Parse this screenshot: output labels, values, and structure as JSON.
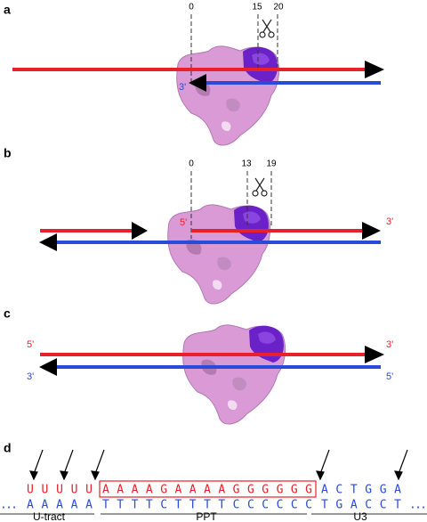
{
  "panels": [
    {
      "label": "a",
      "ticks": [
        "0",
        "15",
        "20"
      ],
      "strand_labels": [
        "3'"
      ]
    },
    {
      "label": "b",
      "ticks": [
        "0",
        "13",
        "19"
      ],
      "strand_labels": [
        "5'",
        "3'"
      ]
    },
    {
      "label": "c",
      "strand_labels": [
        "5'",
        "3'",
        "3'",
        "5'"
      ]
    },
    {
      "label": "d",
      "top_row": [
        "U U U U U",
        "A A A A G A A A A G G G G G G",
        "A C T G G A"
      ],
      "bottom_row": [
        "...",
        "A A A A A",
        "T T T T C T T T T C C C C C C",
        "T G A C C T",
        "..."
      ],
      "regions": [
        "U-tract",
        "PPT",
        "U3"
      ]
    }
  ]
}
